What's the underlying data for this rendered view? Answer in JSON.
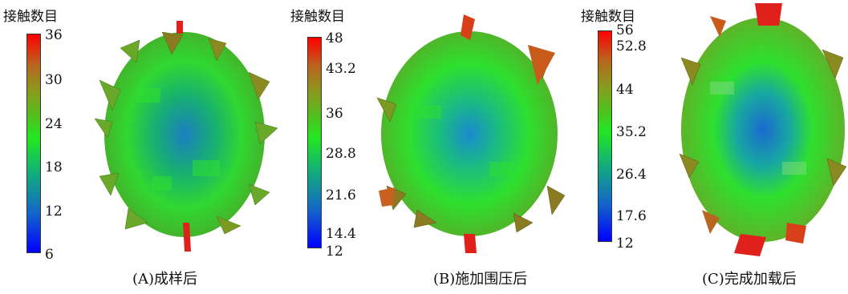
{
  "colorbar_title": "接触数目",
  "panels": [
    {
      "caption": "(A)成样后",
      "ticks": [
        "36",
        "30",
        "24",
        "18",
        "12",
        "6"
      ]
    },
    {
      "caption": "(B)施加围压后",
      "ticks": [
        "48",
        "43.2",
        "36",
        "28.8",
        "21.6",
        "14.4",
        "12"
      ]
    },
    {
      "caption": "(C)完成加载后",
      "ticks": [
        "56",
        "52.8",
        "44",
        "35.2",
        "26.4",
        "17.6",
        "12"
      ]
    }
  ],
  "colors": {
    "min": "#0000ff",
    "mid": "#22e722",
    "max": "#ff0000"
  }
}
